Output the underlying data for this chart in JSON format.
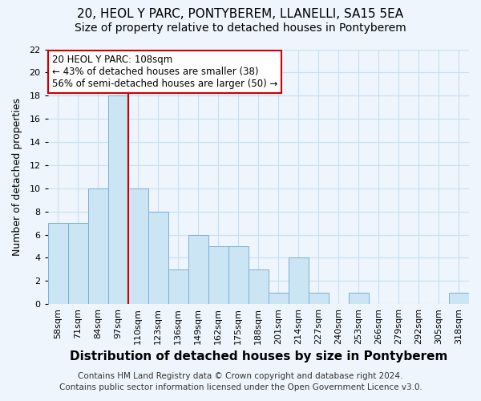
{
  "title": "20, HEOL Y PARC, PONTYBEREM, LLANELLI, SA15 5EA",
  "subtitle": "Size of property relative to detached houses in Pontyberem",
  "xlabel": "Distribution of detached houses by size in Pontyberem",
  "ylabel": "Number of detached properties",
  "bar_labels": [
    "58sqm",
    "71sqm",
    "84sqm",
    "97sqm",
    "110sqm",
    "123sqm",
    "136sqm",
    "149sqm",
    "162sqm",
    "175sqm",
    "188sqm",
    "201sqm",
    "214sqm",
    "227sqm",
    "240sqm",
    "253sqm",
    "266sqm",
    "279sqm",
    "292sqm",
    "305sqm",
    "318sqm"
  ],
  "bar_values": [
    7,
    7,
    10,
    18,
    10,
    8,
    3,
    6,
    5,
    5,
    3,
    1,
    4,
    1,
    0,
    1,
    0,
    0,
    0,
    0,
    1
  ],
  "bar_color": "#cce5f5",
  "bar_edge_color": "#7ab0d4",
  "vline_color": "#cc0000",
  "vline_pos": 3.5,
  "ylim": [
    0,
    22
  ],
  "yticks": [
    0,
    2,
    4,
    6,
    8,
    10,
    12,
    14,
    16,
    18,
    20,
    22
  ],
  "annotation_title": "20 HEOL Y PARC: 108sqm",
  "annotation_line1": "← 43% of detached houses are smaller (38)",
  "annotation_line2": "56% of semi-detached houses are larger (50) →",
  "annotation_box_color": "#ffffff",
  "annotation_box_edge": "#cc0000",
  "footer1": "Contains HM Land Registry data © Crown copyright and database right 2024.",
  "footer2": "Contains public sector information licensed under the Open Government Licence v3.0.",
  "title_fontsize": 11,
  "subtitle_fontsize": 10,
  "xlabel_fontsize": 11,
  "ylabel_fontsize": 9,
  "tick_fontsize": 8,
  "annotation_fontsize": 8.5,
  "footer_fontsize": 7.5,
  "grid_color": "#c8dff0",
  "background_color": "#eef5fc"
}
